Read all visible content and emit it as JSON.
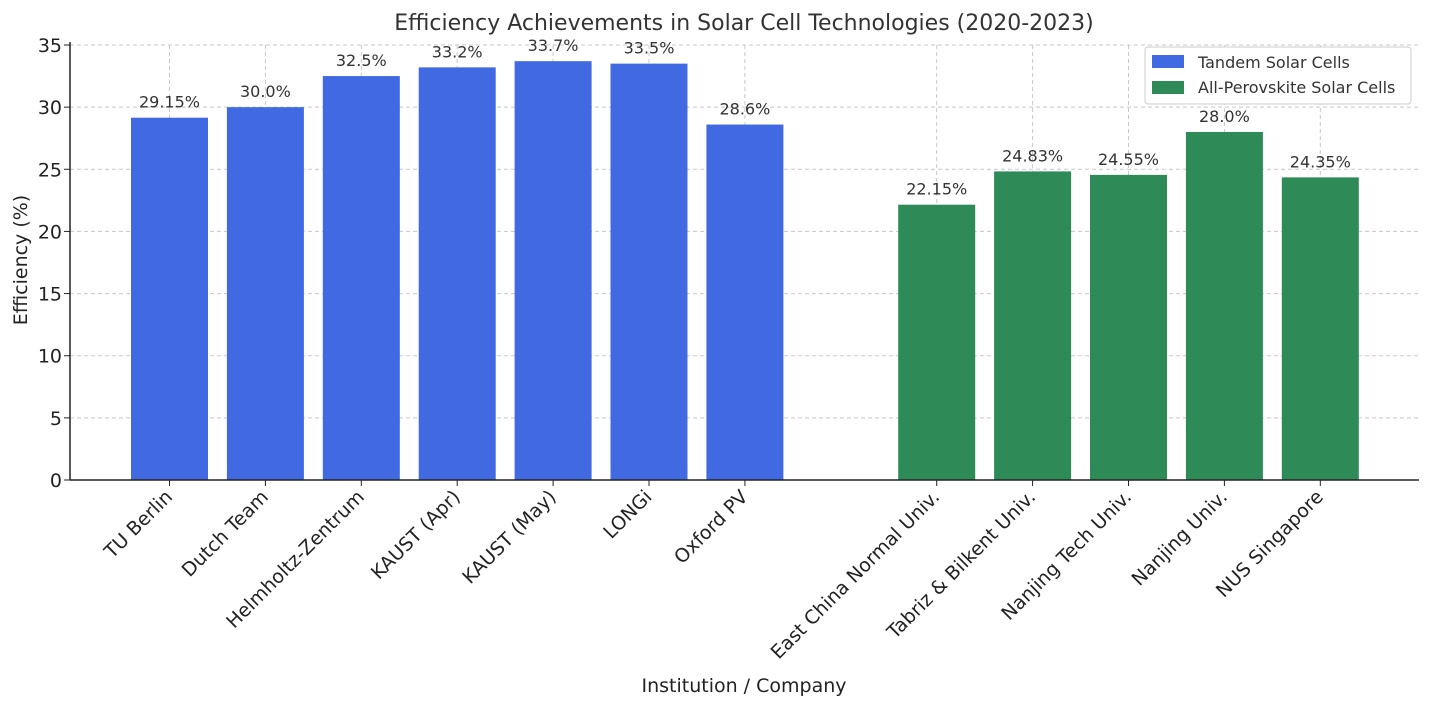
{
  "chart_data": {
    "type": "bar",
    "title": "Efficiency Achievements in Solar Cell Technologies (2020-2023)",
    "xlabel": "Institution / Company",
    "ylabel": "Efficiency (%)",
    "ylim": [
      0,
      35
    ],
    "yticks": [
      0,
      5,
      10,
      15,
      20,
      25,
      30,
      35
    ],
    "grid": true,
    "legend_position": "top-right",
    "series": [
      {
        "name": "Tandem Solar Cells",
        "color": "#4169E1",
        "categories": [
          "TU Berlin",
          "Dutch Team",
          "Helmholtz-Zentrum",
          "KAUST (Apr)",
          "KAUST (May)",
          "LONGi",
          "Oxford PV"
        ],
        "values": [
          29.15,
          30.0,
          32.5,
          33.2,
          33.7,
          33.5,
          28.6
        ],
        "labels": [
          "29.15%",
          "30.0%",
          "32.5%",
          "33.2%",
          "33.7%",
          "33.5%",
          "28.6%"
        ]
      },
      {
        "name": "All-Perovskite Solar Cells",
        "color": "#2E8B57",
        "categories": [
          "East China Normal Univ.",
          "Tabriz & Bilkent Univ.",
          "Nanjing Tech Univ.",
          "Nanjing Univ.",
          "NUS Singapore"
        ],
        "values": [
          22.15,
          24.83,
          24.55,
          28.0,
          24.35
        ],
        "labels": [
          "22.15%",
          "24.83%",
          "24.55%",
          "28.0%",
          "24.35%"
        ]
      }
    ]
  }
}
